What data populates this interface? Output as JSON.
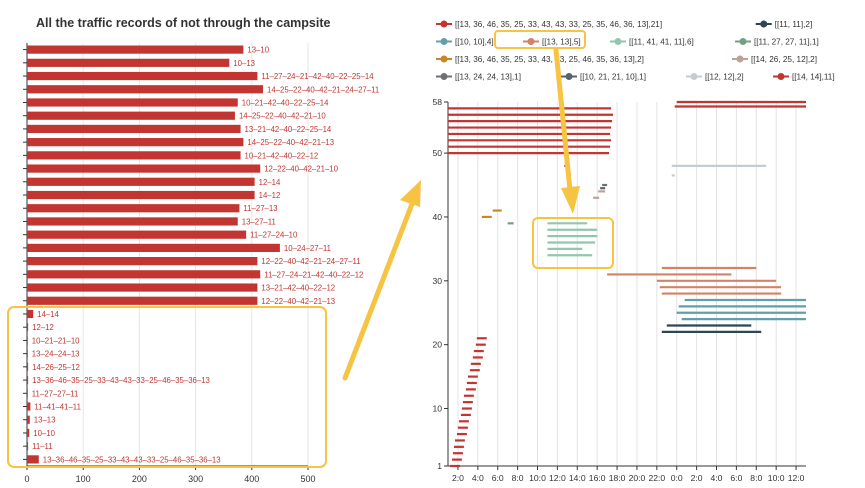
{
  "chart_data": [
    {
      "type": "bar",
      "orientation": "horizontal",
      "title": "All the traffic records of not through the campsite",
      "xlim": [
        0,
        500
      ],
      "xticks": [
        0,
        100,
        200,
        300,
        400,
        500
      ],
      "grid": true,
      "bar_color": "#c23531",
      "label_position": "right",
      "bars": [
        {
          "label": "13–10",
          "value": 385
        },
        {
          "label": "10–13",
          "value": 360
        },
        {
          "label": "11–27–24–21–42–40–22–25–14",
          "value": 410
        },
        {
          "label": "14–25–22–40–42–21–24–27–11",
          "value": 420
        },
        {
          "label": "10–21–42–40–22–25–14",
          "value": 375
        },
        {
          "label": "14–25–22–40–42–21–10",
          "value": 370
        },
        {
          "label": "13–21–42–40–22–25–14",
          "value": 380
        },
        {
          "label": "14–25–22–40–42–21–13",
          "value": 385
        },
        {
          "label": "10–21–42–40–22–12",
          "value": 380
        },
        {
          "label": "12–22–40–42–21–10",
          "value": 415
        },
        {
          "label": "12–14",
          "value": 405
        },
        {
          "label": "14–12",
          "value": 405
        },
        {
          "label": "11–27–13",
          "value": 378
        },
        {
          "label": "13–27–11",
          "value": 375
        },
        {
          "label": "11–27–24–10",
          "value": 390
        },
        {
          "label": "10–24–27–11",
          "value": 450
        },
        {
          "label": "12–22–40–42–21–24–27–11",
          "value": 410
        },
        {
          "label": "11–27–24–21–42–40–22–12",
          "value": 415
        },
        {
          "label": "13–21–42–40–22–12",
          "value": 410
        },
        {
          "label": "12–22–40–42–21–13",
          "value": 410
        },
        {
          "label": "14–14",
          "value": 11
        },
        {
          "label": "12–12",
          "value": 2
        },
        {
          "label": "10–21–21–10",
          "value": 1
        },
        {
          "label": "13–24–24–13",
          "value": 1
        },
        {
          "label": "14–26–25–12",
          "value": 2
        },
        {
          "label": "13–36–46–35–25–33–43–43–33–25–46–35–36–13",
          "value": 2
        },
        {
          "label": "11–27–27–11",
          "value": 1
        },
        {
          "label": "11–41–41–11",
          "value": 6
        },
        {
          "label": "13–13",
          "value": 5
        },
        {
          "label": "10–10",
          "value": 4
        },
        {
          "label": "11–11",
          "value": 2
        },
        {
          "label": "13–36–46–35–25–33–43–43–33–25–46–35–36–13",
          "value": 21
        }
      ]
    },
    {
      "type": "timeline",
      "ylim": [
        1,
        58
      ],
      "yticks": [
        1,
        10,
        20,
        30,
        40,
        50,
        58
      ],
      "xticks": [
        "2:0",
        "4:0",
        "6:0",
        "8:0",
        "10:0",
        "12:0",
        "14:0",
        "16:0",
        "18:0",
        "20:0",
        "22:0",
        "0:0",
        "2:0",
        "4:0",
        "6:0",
        "8:0",
        "10:0",
        "12:0"
      ],
      "xlim_hours": [
        1,
        37
      ],
      "grid": "vertical",
      "legend_position": "top",
      "series": [
        {
          "name": "[[13, 36, 46, 35, 25, 33, 43, 43, 33, 25, 35, 46, 36, 13],21]",
          "color": "#c23531",
          "segments": [
            [
              1.2,
              2.2,
              1
            ],
            [
              1.4,
              2.4,
              2
            ],
            [
              1.5,
              2.5,
              3
            ],
            [
              1.6,
              2.6,
              4
            ],
            [
              1.7,
              2.7,
              5
            ],
            [
              1.9,
              2.9,
              6
            ],
            [
              2.0,
              3.0,
              7
            ],
            [
              2.1,
              3.1,
              8
            ],
            [
              2.3,
              3.3,
              9
            ],
            [
              2.4,
              3.4,
              10
            ],
            [
              2.5,
              3.5,
              11
            ],
            [
              2.6,
              3.6,
              12
            ],
            [
              2.8,
              3.8,
              13
            ],
            [
              2.9,
              3.9,
              14
            ],
            [
              3.0,
              4.0,
              15
            ],
            [
              3.2,
              4.2,
              16
            ],
            [
              3.3,
              4.3,
              17
            ],
            [
              3.5,
              4.5,
              18
            ],
            [
              3.6,
              4.6,
              19
            ],
            [
              3.8,
              4.8,
              20
            ],
            [
              3.9,
              4.9,
              21
            ]
          ]
        },
        {
          "name": "[[11, 11],2]",
          "color": "#2f4554",
          "segments": [
            [
              22.5,
              32.5,
              22
            ],
            [
              23.0,
              31.5,
              23
            ]
          ]
        },
        {
          "name": "[[10, 10],4]",
          "color": "#61a0a8",
          "segments": [
            [
              24.5,
              37.0,
              24
            ],
            [
              24.0,
              37.0,
              25
            ],
            [
              24.2,
              37.0,
              26
            ],
            [
              24.8,
              37.0,
              27
            ]
          ]
        },
        {
          "name": "[[13, 13],5]",
          "color": "#d48265",
          "segments": [
            [
              22.5,
              34.5,
              28
            ],
            [
              22.3,
              34.5,
              29
            ],
            [
              22.0,
              34.0,
              30
            ],
            [
              17.0,
              29.5,
              31
            ],
            [
              22.5,
              32.0,
              32
            ]
          ]
        },
        {
          "name": "[[11, 41, 41, 11],6]",
          "color": "#91c7ae",
          "segments": [
            [
              11.0,
              15.5,
              34
            ],
            [
              11.0,
              14.5,
              35
            ],
            [
              11.0,
              15.8,
              36
            ],
            [
              11.0,
              16.0,
              37
            ],
            [
              11.0,
              16.0,
              38
            ],
            [
              11.0,
              15.0,
              39
            ]
          ]
        },
        {
          "name": "[[11, 27, 27, 11],1]",
          "color": "#749f83",
          "segments": [
            [
              7.0,
              7.6,
              39
            ]
          ]
        },
        {
          "name": "[[13, 36, 46, 35, 25, 33, 43, 33, 25, 46, 35, 36, 13],2]",
          "color": "#ca8622",
          "segments": [
            [
              4.4,
              5.4,
              40
            ],
            [
              5.5,
              6.4,
              41
            ]
          ]
        },
        {
          "name": "[[14, 26, 25, 12],2]",
          "color": "#bda29a",
          "segments": [
            [
              15.6,
              16.2,
              43
            ],
            [
              16.1,
              16.8,
              44
            ]
          ]
        },
        {
          "name": "[[13, 24, 24, 13],1]",
          "color": "#6e7074",
          "segments": [
            [
              16.5,
              17.0,
              45
            ]
          ]
        },
        {
          "name": "[[10, 21, 21, 10],1]",
          "color": "#546570",
          "segments": [
            [
              16.3,
              16.8,
              44.5
            ]
          ]
        },
        {
          "name": "[[12, 12],2]",
          "color": "#c4ccd3",
          "segments": [
            [
              23.5,
              33.0,
              48
            ],
            [
              23.5,
              23.8,
              46.5
            ]
          ]
        },
        {
          "name": "[[14, 14],11]",
          "color": "#c23531",
          "segments": [
            [
              1.0,
              17.2,
              50
            ],
            [
              1.0,
              17.3,
              51
            ],
            [
              1.0,
              17.4,
              52
            ],
            [
              1.0,
              17.3,
              53
            ],
            [
              1.0,
              17.4,
              54
            ],
            [
              1.0,
              17.5,
              55
            ],
            [
              1.0,
              17.6,
              56
            ],
            [
              1.0,
              17.4,
              57
            ],
            [
              24.0,
              37.0,
              58
            ],
            [
              23.8,
              37.0,
              57.3
            ],
            [
              12.7,
              13.2,
              48
            ]
          ]
        }
      ]
    }
  ]
}
